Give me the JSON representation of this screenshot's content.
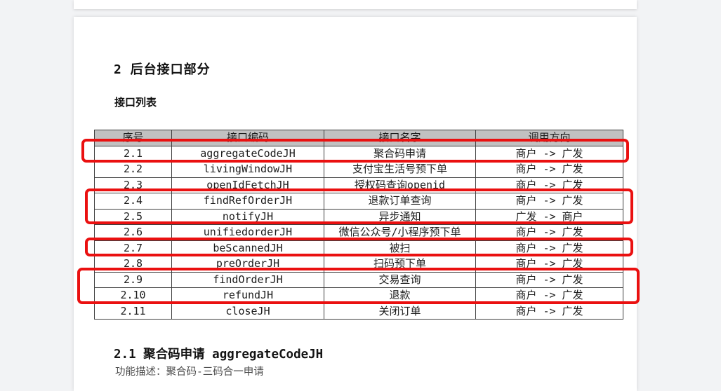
{
  "document": {
    "section_title": "2 后台接口部分",
    "list_label": "接口列表",
    "subsection_title": "2.1 聚合码申请 aggregateCodeJH",
    "function_description": "功能描述：聚合码-三码合一申请"
  },
  "interface_table": {
    "headers": [
      "序号",
      "接口编码",
      "接口名字",
      "调用方向"
    ],
    "rows": [
      {
        "no": "2.1",
        "code": "aggregateCodeJH",
        "name": "聚合码申请",
        "direction": "商户  -> 广发",
        "highlighted": true
      },
      {
        "no": "2.2",
        "code": "livingWindowJH",
        "name": "支付宝生活号预下单",
        "direction": "商户  -> 广发",
        "highlighted": false
      },
      {
        "no": "2.3",
        "code": "openIdFetchJH",
        "name": "授权码查询openid",
        "direction": "商户  -> 广发",
        "highlighted": false
      },
      {
        "no": "2.4",
        "code": "findRefOrderJH",
        "name": "退款订单查询",
        "direction": "商户  -> 广发",
        "highlighted": true
      },
      {
        "no": "2.5",
        "code": "notifyJH",
        "name": "异步通知",
        "direction": "广发  -> 商户",
        "highlighted": true
      },
      {
        "no": "2.6",
        "code": "unifiedorderJH",
        "name": "微信公众号/小程序预下单",
        "direction": "商户  -> 广发",
        "highlighted": false
      },
      {
        "no": "2.7",
        "code": "beScannedJH",
        "name": "被扫",
        "direction": "商户  -> 广发",
        "highlighted": true
      },
      {
        "no": "2.8",
        "code": "preOrderJH",
        "name": "扫码预下单",
        "direction": "商户  -> 广发",
        "highlighted": false
      },
      {
        "no": "2.9",
        "code": "findOrderJH",
        "name": "交易查询",
        "direction": "商户  -> 广发",
        "highlighted": true
      },
      {
        "no": "2.10",
        "code": "refundJH",
        "name": "退款",
        "direction": "商户  -> 广发",
        "highlighted": true
      },
      {
        "no": "2.11",
        "code": "closeJH",
        "name": "关闭订单",
        "direction": "商户  -> 广发",
        "highlighted": false
      }
    ]
  },
  "annotations": {
    "highlight_color": "#ea1010",
    "boxes": [
      {
        "label": "highlight-row-2.1",
        "rows": [
          "2.1"
        ]
      },
      {
        "label": "highlight-rows-2.4-2.5",
        "rows": [
          "2.4",
          "2.5"
        ]
      },
      {
        "label": "highlight-row-2.7",
        "rows": [
          "2.7"
        ]
      },
      {
        "label": "highlight-rows-2.9-2.10",
        "rows": [
          "2.9",
          "2.10"
        ]
      }
    ]
  },
  "colors": {
    "canvas_bg": "#f2f3f5",
    "page_bg": "#ffffff",
    "table_header_bg": "#c1c1c1",
    "table_border": "#3f3f3f"
  }
}
